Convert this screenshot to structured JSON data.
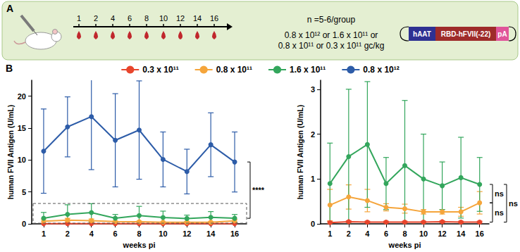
{
  "panel_a": {
    "label": "A",
    "timeline": [
      1,
      2,
      4,
      6,
      8,
      10,
      12,
      14,
      16
    ],
    "group_size": "n =5-6/group",
    "doses": [
      "0.8 x 10¹² or 1.6 x 10¹¹ or",
      "0.8 x 10¹¹ or 0.3 x 10¹¹ gc/kg"
    ],
    "construct": [
      "hAAT",
      "RBD-hFVII(-22)",
      "pA"
    ]
  },
  "panel_b_label": "B",
  "chart_data": [
    {
      "type": "line",
      "x_label": "weeks pi",
      "y_label": "human FVII Antigen (U/mL)",
      "categories": [
        "1",
        "2",
        "4",
        "6",
        "8",
        "10",
        "12",
        "14",
        "16"
      ],
      "ylim": [
        0,
        22.5
      ],
      "yticks": [
        0,
        5,
        10,
        15,
        20
      ],
      "grid": false,
      "legend": "top",
      "marker": "circle",
      "series": [
        {
          "name": "0.3 x 10¹¹",
          "color": "#e8452c",
          "values": [
            0.03,
            0.05,
            0.04,
            0.04,
            0.04,
            0.04,
            0.05,
            0.04,
            0.04
          ],
          "errors": [
            0.02,
            0.02,
            0.02,
            0.02,
            0.02,
            0.02,
            0.02,
            0.02,
            0.02
          ]
        },
        {
          "name": "0.8 x 10¹¹",
          "color": "#f5a53b",
          "values": [
            0.42,
            0.6,
            0.52,
            0.37,
            0.34,
            0.27,
            0.27,
            0.27,
            0.47
          ],
          "errors": [
            0.35,
            0.27,
            0.25,
            0.08,
            0.1,
            0.05,
            0.05,
            0.1,
            0.25
          ]
        },
        {
          "name": "1.6 x 10¹¹",
          "color": "#33a65c",
          "values": [
            0.9,
            1.5,
            1.77,
            0.9,
            1.3,
            1.0,
            0.85,
            1.03,
            0.88
          ],
          "errors": [
            0.9,
            1.5,
            1.4,
            0.58,
            1.45,
            1.0,
            0.53,
            0.9,
            0.6
          ]
        },
        {
          "name": "0.8 x 10¹²",
          "color": "#2d5ca8",
          "values": [
            11.4,
            15.2,
            16.8,
            13.1,
            14.7,
            10.1,
            8.2,
            12.4,
            9.7
          ],
          "errors": [
            6.6,
            4.7,
            8.3,
            7.3,
            7.7,
            4.3,
            3.5,
            5.0,
            4.7
          ]
        }
      ],
      "annotations": [
        {
          "text": "****",
          "between": [
            "0.8 x 10¹²",
            "1.6 x 10¹¹"
          ]
        }
      ]
    },
    {
      "type": "line",
      "x_label": "weeks pi",
      "y_label": "human FVII Antigen (U/mL)",
      "categories": [
        "1",
        "2",
        "4",
        "6",
        "8",
        "10",
        "12",
        "14",
        "16"
      ],
      "ylim": [
        0,
        3.2
      ],
      "yticks": [
        0,
        1,
        2,
        3
      ],
      "grid": false,
      "marker": "circle",
      "series": [
        {
          "name": "0.3 x 10¹¹",
          "color": "#e8452c",
          "values": [
            0.03,
            0.05,
            0.04,
            0.04,
            0.04,
            0.04,
            0.05,
            0.04,
            0.04
          ],
          "errors": [
            0.02,
            0.02,
            0.02,
            0.02,
            0.02,
            0.02,
            0.02,
            0.02,
            0.02
          ]
        },
        {
          "name": "0.8 x 10¹¹",
          "color": "#f5a53b",
          "values": [
            0.42,
            0.6,
            0.52,
            0.37,
            0.34,
            0.27,
            0.27,
            0.27,
            0.47
          ],
          "errors": [
            0.35,
            0.27,
            0.25,
            0.08,
            0.1,
            0.05,
            0.05,
            0.1,
            0.25
          ]
        },
        {
          "name": "1.6 x 10¹¹",
          "color": "#33a65c",
          "values": [
            0.9,
            1.5,
            1.77,
            0.9,
            1.3,
            1.0,
            0.85,
            1.03,
            0.88
          ],
          "errors": [
            0.9,
            1.5,
            1.4,
            0.58,
            1.45,
            1.0,
            0.53,
            0.9,
            0.6
          ]
        }
      ],
      "annotations": [
        {
          "text": "ns",
          "between": [
            "1.6 x 10¹¹",
            "0.8 x 10¹¹"
          ]
        },
        {
          "text": "ns",
          "between": [
            "0.8 x 10¹¹",
            "0.3 x 10¹¹"
          ]
        },
        {
          "text": "ns",
          "between": [
            "1.6 x 10¹¹",
            "0.3 x 10¹¹"
          ]
        }
      ]
    }
  ]
}
